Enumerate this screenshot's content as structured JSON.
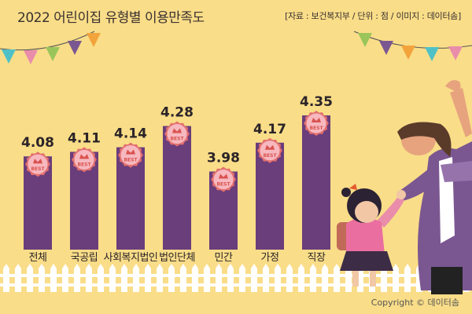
{
  "header": {
    "title": "2022 어린이집 유형별 이용만족도",
    "source": "[자료 : 보건복지부 / 단위 : 점 / 이미지 : 데이터솜]"
  },
  "footer": {
    "copyright": "Copyright © 데이터솜"
  },
  "colors": {
    "background": "#f9dd88",
    "bar": "#6a3d7b",
    "badge_fill": "#f7b8bf",
    "badge_edge": "#e3706f",
    "badge_text": "#d9534f",
    "fence": "#ffffff"
  },
  "badge_text": "BEST",
  "chart_data": {
    "type": "bar",
    "title": "2022 어린이집 유형별 이용만족도",
    "xlabel": "",
    "ylabel": "",
    "unit": "점",
    "categories": [
      "전체",
      "국공립",
      "사회복지법인",
      "법인단체",
      "민간",
      "가정",
      "직장"
    ],
    "values": [
      4.08,
      4.11,
      4.14,
      4.28,
      3.98,
      4.17,
      4.35
    ],
    "value_labels": [
      "4.08",
      "4.11",
      "4.14",
      "4.28",
      "3.98",
      "4.17",
      "4.35"
    ],
    "bar_color": "#6a3d7b",
    "grid": false,
    "legend": "none"
  }
}
